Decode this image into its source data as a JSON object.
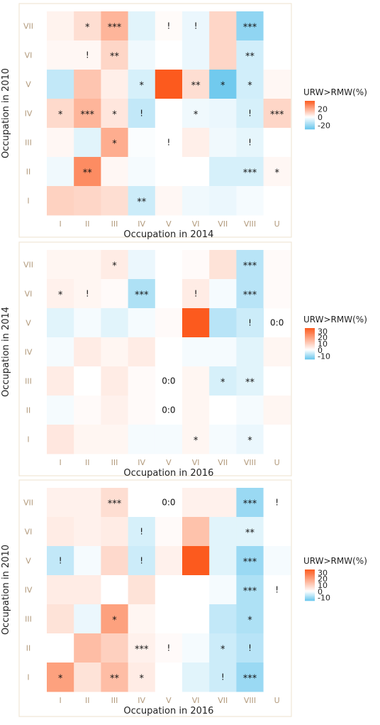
{
  "chart_data": [
    {
      "type": "heatmap",
      "xlabel": "Occupation in 2014",
      "ylabel": "Occupation in 2010",
      "x_categories": [
        "I",
        "II",
        "III",
        "IV",
        "V",
        "VI",
        "VII",
        "VIII",
        "U"
      ],
      "y_categories": [
        "I",
        "II",
        "III",
        "IV",
        "V",
        "VI",
        "VII"
      ],
      "legend": {
        "title": "URW>RMW(%)",
        "ticks": [
          20,
          0,
          -20
        ],
        "range": [
          -30,
          40
        ],
        "position": "right"
      },
      "cells": [
        [
          "I",
          "VII",
          3,
          ""
        ],
        [
          "II",
          "VII",
          8,
          "*"
        ],
        [
          "III",
          "VII",
          18,
          "***"
        ],
        [
          "IV",
          "VII",
          -6,
          ""
        ],
        [
          "V",
          "VII",
          1,
          "!"
        ],
        [
          "VI",
          "VII",
          -4,
          "!"
        ],
        [
          "VII",
          "VII",
          10,
          ""
        ],
        [
          "VIII",
          "VII",
          -22,
          "***"
        ],
        [
          "U",
          "VII",
          0,
          ""
        ],
        [
          "I",
          "VI",
          2,
          ""
        ],
        [
          "II",
          "VI",
          2,
          "!"
        ],
        [
          "III",
          "VI",
          10,
          "**"
        ],
        [
          "IV",
          "VI",
          -3,
          ""
        ],
        [
          "V",
          "VI",
          0,
          ""
        ],
        [
          "VI",
          "VI",
          -4,
          ""
        ],
        [
          "VII",
          "VI",
          10,
          ""
        ],
        [
          "VIII",
          "VI",
          -9,
          "**"
        ],
        [
          "U",
          "VI",
          0,
          ""
        ],
        [
          "I",
          "V",
          -12,
          ""
        ],
        [
          "II",
          "V",
          14,
          ""
        ],
        [
          "III",
          "V",
          4,
          ""
        ],
        [
          "IV",
          "V",
          -8,
          "*"
        ],
        [
          "V",
          "V",
          40,
          ""
        ],
        [
          "VI",
          "V",
          8,
          "**"
        ],
        [
          "VII",
          "V",
          -28,
          "*"
        ],
        [
          "VIII",
          "V",
          -9,
          "*"
        ],
        [
          "U",
          "V",
          2,
          ""
        ],
        [
          "I",
          "IV",
          9,
          "*"
        ],
        [
          "II",
          "IV",
          18,
          "***"
        ],
        [
          "III",
          "IV",
          6,
          "*"
        ],
        [
          "IV",
          "IV",
          -12,
          "!"
        ],
        [
          "V",
          "IV",
          0,
          ""
        ],
        [
          "VI",
          "IV",
          -3,
          "*"
        ],
        [
          "VII",
          "IV",
          -4,
          ""
        ],
        [
          "VIII",
          "IV",
          -8,
          "!"
        ],
        [
          "U",
          "IV",
          10,
          "***"
        ],
        [
          "I",
          "III",
          2,
          ""
        ],
        [
          "II",
          "III",
          -6,
          ""
        ],
        [
          "III",
          "III",
          20,
          "*"
        ],
        [
          "IV",
          "III",
          -1,
          ""
        ],
        [
          "V",
          "III",
          0,
          "!"
        ],
        [
          "VI",
          "III",
          4,
          ""
        ],
        [
          "VII",
          "III",
          -3,
          ""
        ],
        [
          "VIII",
          "III",
          -5,
          "!"
        ],
        [
          "U",
          "III",
          0,
          ""
        ],
        [
          "I",
          "II",
          -3,
          ""
        ],
        [
          "II",
          "II",
          28,
          "**"
        ],
        [
          "III",
          "II",
          2,
          ""
        ],
        [
          "IV",
          "II",
          -2,
          ""
        ],
        [
          "V",
          "II",
          0,
          ""
        ],
        [
          "VI",
          "II",
          0,
          ""
        ],
        [
          "VII",
          "II",
          -8,
          ""
        ],
        [
          "VIII",
          "II",
          -8,
          "***"
        ],
        [
          "U",
          "II",
          2,
          "*"
        ],
        [
          "I",
          "I",
          11,
          ""
        ],
        [
          "II",
          "I",
          10,
          ""
        ],
        [
          "III",
          "I",
          8,
          ""
        ],
        [
          "IV",
          "I",
          -10,
          "**"
        ],
        [
          "V",
          "I",
          2,
          ""
        ],
        [
          "VI",
          "I",
          -3,
          ""
        ],
        [
          "VII",
          "I",
          -4,
          ""
        ],
        [
          "VIII",
          "I",
          -2,
          ""
        ],
        [
          "U",
          "I",
          0,
          ""
        ]
      ]
    },
    {
      "type": "heatmap",
      "xlabel": "Occupation in 2016",
      "ylabel": "Occupation in 2014",
      "x_categories": [
        "I",
        "II",
        "III",
        "IV",
        "V",
        "VI",
        "VII",
        "VIII",
        "U"
      ],
      "y_categories": [
        "I",
        "II",
        "III",
        "IV",
        "V",
        "VI",
        "VII"
      ],
      "legend": {
        "title": "URW>RMW(%)",
        "ticks": [
          30,
          20,
          10,
          0,
          -10
        ],
        "range": [
          -15,
          35
        ],
        "position": "right"
      },
      "cells": [
        [
          "I",
          "VII",
          2,
          ""
        ],
        [
          "II",
          "VII",
          2,
          ""
        ],
        [
          "III",
          "VII",
          4,
          "*"
        ],
        [
          "IV",
          "VII",
          -2,
          ""
        ],
        [
          "V",
          "VII",
          0,
          ""
        ],
        [
          "VI",
          "VII",
          1,
          ""
        ],
        [
          "VII",
          "VII",
          6,
          ""
        ],
        [
          "VIII",
          "VII",
          -7,
          "***"
        ],
        [
          "U",
          "VII",
          1,
          ""
        ],
        [
          "I",
          "VI",
          3,
          "*"
        ],
        [
          "II",
          "VI",
          2,
          "!"
        ],
        [
          "III",
          "VI",
          1,
          ""
        ],
        [
          "IV",
          "VI",
          -8,
          "***"
        ],
        [
          "V",
          "VI",
          0,
          ""
        ],
        [
          "VI",
          "VI",
          4,
          "!"
        ],
        [
          "VII",
          "VI",
          -1,
          ""
        ],
        [
          "VIII",
          "VI",
          -7,
          "***"
        ],
        [
          "U",
          "VI",
          1,
          ""
        ],
        [
          "I",
          "V",
          -3,
          ""
        ],
        [
          "II",
          "V",
          -1,
          ""
        ],
        [
          "III",
          "V",
          -3,
          ""
        ],
        [
          "IV",
          "V",
          -1,
          ""
        ],
        [
          "V",
          "V",
          1,
          ""
        ],
        [
          "VI",
          "V",
          35,
          ""
        ],
        [
          "VII",
          "V",
          -7,
          ""
        ],
        [
          "VIII",
          "V",
          -5,
          "!"
        ],
        [
          "U",
          "V",
          null,
          "0:0"
        ],
        [
          "I",
          "IV",
          -1,
          ""
        ],
        [
          "II",
          "IV",
          4,
          ""
        ],
        [
          "III",
          "IV",
          2,
          ""
        ],
        [
          "IV",
          "IV",
          4,
          ""
        ],
        [
          "V",
          "IV",
          0,
          ""
        ],
        [
          "VI",
          "IV",
          -1,
          ""
        ],
        [
          "VII",
          "IV",
          -1,
          ""
        ],
        [
          "VIII",
          "IV",
          -3,
          ""
        ],
        [
          "U",
          "IV",
          2,
          ""
        ],
        [
          "I",
          "III",
          4,
          ""
        ],
        [
          "II",
          "III",
          0,
          ""
        ],
        [
          "III",
          "III",
          4,
          ""
        ],
        [
          "IV",
          "III",
          1,
          ""
        ],
        [
          "V",
          "III",
          null,
          "0:0"
        ],
        [
          "VI",
          "III",
          2,
          ""
        ],
        [
          "VII",
          "III",
          -4,
          "*"
        ],
        [
          "VIII",
          "III",
          -3,
          "**"
        ],
        [
          "U",
          "III",
          0,
          ""
        ],
        [
          "I",
          "II",
          -1,
          ""
        ],
        [
          "II",
          "II",
          1,
          ""
        ],
        [
          "III",
          "II",
          3,
          ""
        ],
        [
          "IV",
          "II",
          1,
          ""
        ],
        [
          "V",
          "II",
          null,
          "0:0"
        ],
        [
          "VI",
          "II",
          2,
          ""
        ],
        [
          "VII",
          "II",
          0,
          ""
        ],
        [
          "VIII",
          "II",
          -1,
          ""
        ],
        [
          "U",
          "II",
          2,
          ""
        ],
        [
          "I",
          "I",
          5,
          ""
        ],
        [
          "II",
          "I",
          2,
          ""
        ],
        [
          "III",
          "I",
          2,
          ""
        ],
        [
          "IV",
          "I",
          -1,
          ""
        ],
        [
          "V",
          "I",
          -1,
          ""
        ],
        [
          "VI",
          "I",
          2,
          "*"
        ],
        [
          "VII",
          "I",
          -1,
          ""
        ],
        [
          "VIII",
          "I",
          -2,
          "*"
        ],
        [
          "U",
          "I",
          0,
          ""
        ]
      ]
    },
    {
      "type": "heatmap",
      "xlabel": "Occupation in 2016",
      "ylabel": "Occupation in 2010",
      "x_categories": [
        "I",
        "II",
        "III",
        "IV",
        "V",
        "VI",
        "VII",
        "VIII",
        "U"
      ],
      "y_categories": [
        "I",
        "II",
        "III",
        "IV",
        "V",
        "VI",
        "VII"
      ],
      "legend": {
        "title": "URW>RMW(%)",
        "ticks": [
          30,
          20,
          10,
          0,
          -10
        ],
        "range": [
          -15,
          35
        ],
        "position": "right"
      },
      "cells": [
        [
          "I",
          "VII",
          3,
          ""
        ],
        [
          "II",
          "VII",
          3,
          ""
        ],
        [
          "III",
          "VII",
          7,
          "***"
        ],
        [
          "IV",
          "VII",
          0,
          ""
        ],
        [
          "V",
          "VII",
          null,
          "0:0"
        ],
        [
          "VI",
          "VII",
          3,
          ""
        ],
        [
          "VII",
          "VII",
          3,
          ""
        ],
        [
          "VIII",
          "VII",
          -10,
          "***"
        ],
        [
          "U",
          "VII",
          0,
          "!"
        ],
        [
          "I",
          "VI",
          4,
          ""
        ],
        [
          "II",
          "VI",
          3,
          ""
        ],
        [
          "III",
          "VI",
          4,
          ""
        ],
        [
          "IV",
          "VI",
          -4,
          "!"
        ],
        [
          "V",
          "VI",
          1,
          ""
        ],
        [
          "VI",
          "VI",
          13,
          ""
        ],
        [
          "VII",
          "VI",
          -3,
          ""
        ],
        [
          "VIII",
          "VI",
          -3,
          "**"
        ],
        [
          "U",
          "VI",
          0,
          ""
        ],
        [
          "I",
          "V",
          -6,
          "!"
        ],
        [
          "II",
          "V",
          -1,
          ""
        ],
        [
          "III",
          "V",
          8,
          ""
        ],
        [
          "IV",
          "V",
          -5,
          "!"
        ],
        [
          "V",
          "V",
          3,
          ""
        ],
        [
          "VI",
          "V",
          35,
          ""
        ],
        [
          "VII",
          "V",
          -3,
          ""
        ],
        [
          "VIII",
          "V",
          -10,
          "***"
        ],
        [
          "U",
          "V",
          -1,
          ""
        ],
        [
          "I",
          "IV",
          4,
          ""
        ],
        [
          "II",
          "IV",
          4,
          ""
        ],
        [
          "III",
          "IV",
          0,
          ""
        ],
        [
          "IV",
          "IV",
          6,
          ""
        ],
        [
          "V",
          "IV",
          0,
          ""
        ],
        [
          "VI",
          "IV",
          0,
          ""
        ],
        [
          "VII",
          "IV",
          -1,
          ""
        ],
        [
          "VIII",
          "IV",
          -8,
          "***"
        ],
        [
          "U",
          "IV",
          0,
          "!"
        ],
        [
          "I",
          "III",
          6,
          ""
        ],
        [
          "II",
          "III",
          -2,
          ""
        ],
        [
          "III",
          "III",
          20,
          "*"
        ],
        [
          "IV",
          "III",
          2,
          ""
        ],
        [
          "V",
          "III",
          0,
          ""
        ],
        [
          "VI",
          "III",
          0,
          ""
        ],
        [
          "VII",
          "III",
          -6,
          ""
        ],
        [
          "VIII",
          "III",
          -8,
          "*"
        ],
        [
          "U",
          "III",
          0,
          ""
        ],
        [
          "I",
          "II",
          0,
          ""
        ],
        [
          "II",
          "II",
          14,
          ""
        ],
        [
          "III",
          "II",
          10,
          ""
        ],
        [
          "IV",
          "II",
          3,
          "***"
        ],
        [
          "V",
          "II",
          1,
          "!"
        ],
        [
          "VI",
          "II",
          -1,
          ""
        ],
        [
          "VII",
          "II",
          -5,
          "*"
        ],
        [
          "VIII",
          "II",
          -7,
          "!"
        ],
        [
          "U",
          "II",
          0,
          ""
        ],
        [
          "I",
          "I",
          20,
          "*"
        ],
        [
          "II",
          "I",
          6,
          ""
        ],
        [
          "III",
          "I",
          14,
          "**"
        ],
        [
          "IV",
          "I",
          4,
          "*"
        ],
        [
          "V",
          "I",
          0,
          ""
        ],
        [
          "VI",
          "I",
          -3,
          ""
        ],
        [
          "VII",
          "I",
          -5,
          "!"
        ],
        [
          "VIII",
          "I",
          -10,
          "***"
        ],
        [
          "U",
          "I",
          0,
          ""
        ]
      ]
    }
  ],
  "colors": {
    "high": "#fc5a1e",
    "mid": "#ffffff",
    "low": "#67c6ed",
    "panel_border": "#efe7d6",
    "tick_label": "#b29a7c",
    "axis_title": "#222222"
  }
}
